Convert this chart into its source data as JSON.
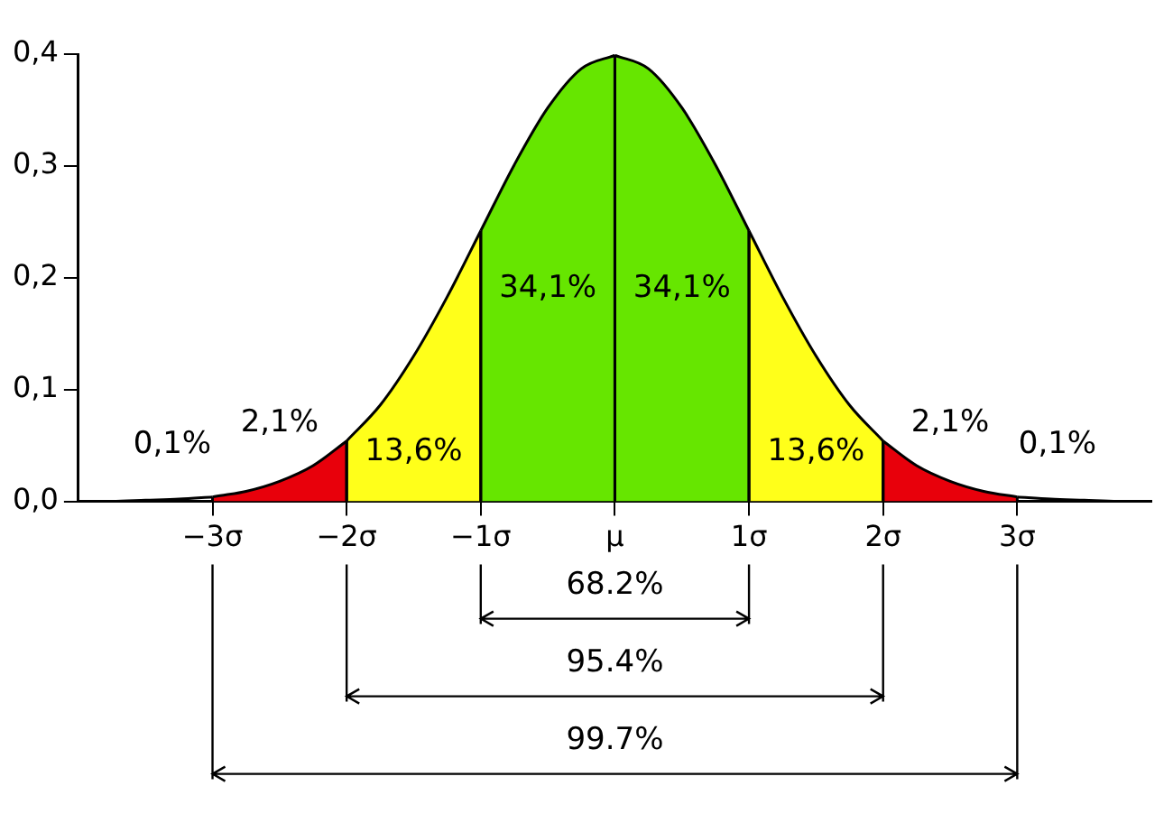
{
  "chart_data": {
    "type": "area",
    "xlim": [
      -4,
      4
    ],
    "ylim": [
      0,
      0.4
    ],
    "grid": "x",
    "xticks": [
      {
        "value": -3,
        "label": "−3σ"
      },
      {
        "value": -2,
        "label": "−2σ"
      },
      {
        "value": -1,
        "label": "−1σ"
      },
      {
        "value": 0,
        "label": "μ"
      },
      {
        "value": 1,
        "label": "1σ"
      },
      {
        "value": 2,
        "label": "2σ"
      },
      {
        "value": 3,
        "label": "3σ"
      }
    ],
    "yticks": [
      {
        "value": 0,
        "label": "0,0"
      },
      {
        "value": 0.1,
        "label": "0,1"
      },
      {
        "value": 0.2,
        "label": "0,2"
      },
      {
        "value": 0.3,
        "label": "0,3"
      },
      {
        "value": 0.4,
        "label": "0,4"
      }
    ],
    "series": [
      {
        "type": "line",
        "color": "#000000",
        "x": [
          -4,
          -3.75,
          -3.5,
          -3.25,
          -3
        ],
        "values": [
          0,
          0,
          0.001,
          0.002,
          0.004
        ]
      },
      {
        "color": "#e8000b",
        "x": [
          -3,
          -2.75,
          -2.5,
          -2.25,
          -2
        ],
        "values": [
          0.004,
          0.009,
          0.018,
          0.032,
          0.054
        ]
      },
      {
        "color": "#ffff1a",
        "x": [
          -2,
          -1.75,
          -1.5,
          -1.25,
          -1
        ],
        "values": [
          0.054,
          0.086,
          0.13,
          0.183,
          0.242
        ]
      },
      {
        "color": "#66e600",
        "x": [
          -1,
          -0.75,
          -0.5,
          -0.25,
          0
        ],
        "values": [
          0.242,
          0.301,
          0.352,
          0.387,
          0.399
        ]
      },
      {
        "color": "#66e600",
        "x": [
          0,
          0.25,
          0.5,
          0.75,
          1
        ],
        "values": [
          0.399,
          0.387,
          0.352,
          0.301,
          0.242
        ]
      },
      {
        "color": "#ffff1a",
        "x": [
          1,
          1.25,
          1.5,
          1.75,
          2
        ],
        "values": [
          0.242,
          0.183,
          0.13,
          0.086,
          0.054
        ]
      },
      {
        "color": "#e8000b",
        "x": [
          2,
          2.25,
          2.5,
          2.75,
          3
        ],
        "values": [
          0.054,
          0.032,
          0.018,
          0.009,
          0.004
        ]
      },
      {
        "type": "line",
        "color": "#000000",
        "x": [
          3,
          3.25,
          3.5,
          3.75,
          4
        ],
        "values": [
          0.004,
          0.002,
          0.001,
          0,
          0
        ]
      }
    ],
    "annotations": [
      "34,1%",
      "34,1%",
      "13,6%",
      "13,6%",
      "2,1%",
      "2,1%",
      "0,1%",
      "0,1%",
      "68.2%",
      "95.4%",
      "99.7%"
    ]
  }
}
